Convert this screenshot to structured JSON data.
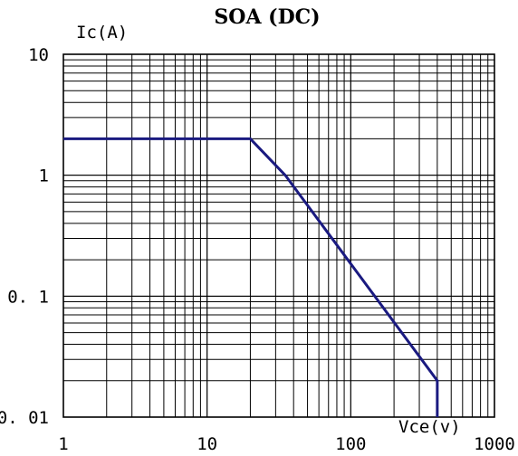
{
  "chart_data": {
    "type": "line",
    "title": "SOA (DC)",
    "xlabel": "Vce(v)",
    "ylabel": "Ic(A)",
    "x_scale": "log",
    "y_scale": "log",
    "xlim": [
      1,
      1000
    ],
    "ylim": [
      0.01,
      10
    ],
    "x_ticks": [
      1,
      10,
      100,
      1000
    ],
    "x_tick_labels": [
      "1",
      "10",
      "100",
      "1000"
    ],
    "y_ticks": [
      10,
      1,
      0.1,
      0.01
    ],
    "y_tick_labels": [
      "10",
      "1",
      "0. 1",
      "0. 01"
    ],
    "grid": true,
    "line_color": "#1a1a80",
    "grid_color": "#000000",
    "series": [
      {
        "x": [
          1,
          20,
          35,
          400,
          400
        ],
        "y": [
          2,
          2,
          1,
          0.02,
          0.01
        ]
      }
    ]
  }
}
